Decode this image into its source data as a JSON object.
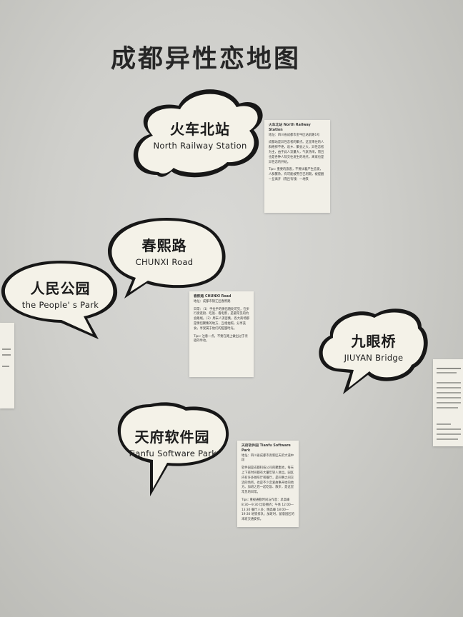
{
  "title": "成都异性恋地图",
  "bubbles": [
    {
      "id": "north-railway-station",
      "cn": "火车北站",
      "en": "North Railway Station"
    },
    {
      "id": "chunxi-road",
      "cn": "春熙路",
      "en": "CHUNXI Road"
    },
    {
      "id": "peoples-park",
      "cn": "人民公园",
      "en": "the People' s Park"
    },
    {
      "id": "jiuyan-bridge",
      "cn": "九眼桥",
      "en": "JIUYAN Bridge"
    },
    {
      "id": "tianfu-software-park",
      "cn": "天府软件园",
      "en": "Tianfu Software Park"
    }
  ],
  "cards": {
    "north": {
      "title": "火车北站 North Railway Station",
      "sub": "地址：四川省成都市金牛区站前路1号",
      "body": "成都站是异性恋者的聚点。这里来往的人群络绎不绝，返乡、聚会之大，异性恋者为主，由于此人流量大，气氛热闹，而且也是各种人际交往发生的地点，离家也是异性恋的开始。",
      "tips": "Tips: 重要的旅客，不要试着产生恋爱，人群繁杂，有可能被警告已到期，被提醒一旦离开（而且有钱）—地铁"
    },
    "chunxi": {
      "title": "春熙路 CHUNXI Road",
      "sub": "地址：成都市锦江区春熙路",
      "body": "日常：（1）手拉手的情侣随处可见，在步行街逛街、吃饭、看电影，是最常见的约会路线。（2）周末人流密集，各大商场都是情侣聚集的地方，互相拍照，分享美食，享受属于他们的甜蜜时光。",
      "tips": "Tips: 注意一点，不要在路上做出过于亲密的举动。"
    },
    "tianfu": {
      "title": "天府软件园 Tianfu Software Park",
      "sub": "地址：四川省成都市高新区天府大道中段",
      "body": "软件园是成都科技公司的聚集地，每天上下班时间都有大量年轻人进出。园区内有许多咖啡厅和餐厅，是同事之间交流的场所，也是不少恋爱故事开始的地方。加班之后一起吃饭、散步，是这里常见的日常。",
      "tips": "Tips: 重视通勤时间与作息：早高峰 8:30—9:30 比较拥挤；午休 12:00—13:30 餐厅人多；晚高峰 18:00—19:30 地铁排队；加班时，留意园区的末班交通安排。"
    }
  }
}
